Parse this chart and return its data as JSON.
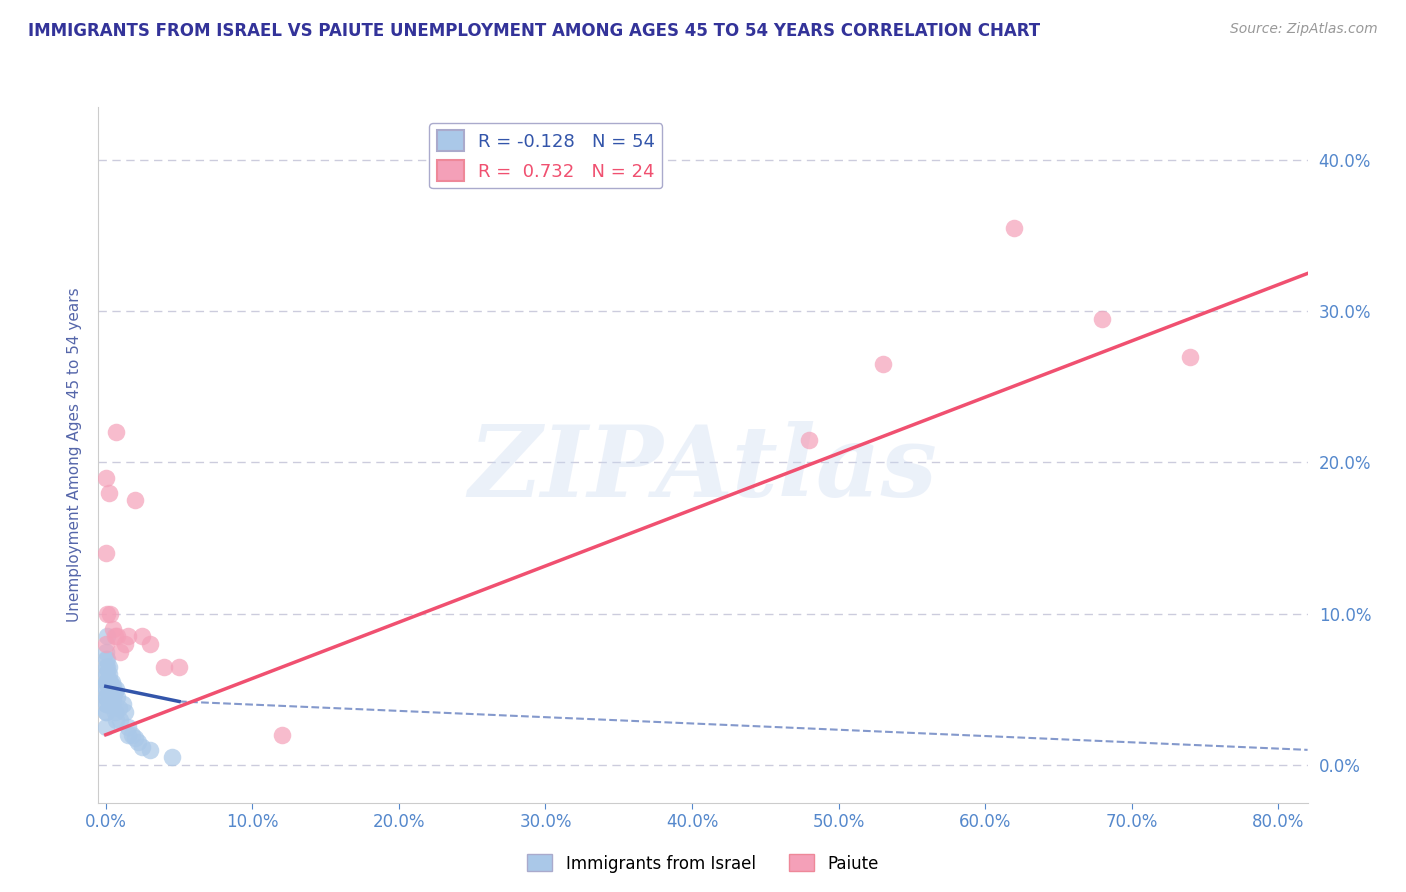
{
  "title": "IMMIGRANTS FROM ISRAEL VS PAIUTE UNEMPLOYMENT AMONG AGES 45 TO 54 YEARS CORRELATION CHART",
  "source": "Source: ZipAtlas.com",
  "ylabel": "Unemployment Among Ages 45 to 54 years",
  "watermark": "ZIPAtlas",
  "legend1_label": "Immigrants from Israel",
  "legend2_label": "Paiute",
  "R1": -0.128,
  "N1": 54,
  "R2": 0.732,
  "N2": 24,
  "xlim": [
    -0.005,
    0.82
  ],
  "ylim": [
    -0.025,
    0.435
  ],
  "xticks": [
    0.0,
    0.1,
    0.2,
    0.3,
    0.4,
    0.5,
    0.6,
    0.7,
    0.8
  ],
  "yticks": [
    0.0,
    0.1,
    0.2,
    0.3,
    0.4
  ],
  "color_israel": "#aac8e8",
  "color_paiute": "#f4a0b8",
  "trendline_israel_color": "#3355aa",
  "trendline_paiute_color": "#f05070",
  "background_color": "#ffffff",
  "grid_color": "#ccccdd",
  "title_color": "#333399",
  "axis_label_color": "#5566aa",
  "tick_label_color": "#5588cc",
  "scatter_israel": [
    [
      0.0,
      0.055
    ],
    [
      0.0,
      0.065
    ],
    [
      0.0,
      0.045
    ],
    [
      0.0,
      0.05
    ],
    [
      0.0,
      0.06
    ],
    [
      0.0,
      0.075
    ],
    [
      0.0,
      0.035
    ],
    [
      0.0,
      0.04
    ],
    [
      0.0,
      0.05
    ],
    [
      0.0,
      0.025
    ],
    [
      0.0,
      0.07
    ],
    [
      0.0,
      0.055
    ],
    [
      0.0,
      0.045
    ],
    [
      0.0,
      0.035
    ],
    [
      0.001,
      0.065
    ],
    [
      0.001,
      0.055
    ],
    [
      0.001,
      0.045
    ],
    [
      0.001,
      0.07
    ],
    [
      0.001,
      0.04
    ],
    [
      0.001,
      0.085
    ],
    [
      0.001,
      0.06
    ],
    [
      0.001,
      0.055
    ],
    [
      0.002,
      0.06
    ],
    [
      0.002,
      0.05
    ],
    [
      0.002,
      0.065
    ],
    [
      0.002,
      0.04
    ],
    [
      0.002,
      0.055
    ],
    [
      0.003,
      0.04
    ],
    [
      0.003,
      0.05
    ],
    [
      0.003,
      0.055
    ],
    [
      0.003,
      0.048
    ],
    [
      0.003,
      0.042
    ],
    [
      0.004,
      0.055
    ],
    [
      0.004,
      0.048
    ],
    [
      0.004,
      0.04
    ],
    [
      0.005,
      0.052
    ],
    [
      0.005,
      0.044
    ],
    [
      0.006,
      0.048
    ],
    [
      0.006,
      0.035
    ],
    [
      0.007,
      0.05
    ],
    [
      0.007,
      0.03
    ],
    [
      0.008,
      0.045
    ],
    [
      0.009,
      0.038
    ],
    [
      0.01,
      0.03
    ],
    [
      0.012,
      0.04
    ],
    [
      0.013,
      0.035
    ],
    [
      0.015,
      0.025
    ],
    [
      0.015,
      0.02
    ],
    [
      0.018,
      0.02
    ],
    [
      0.02,
      0.018
    ],
    [
      0.022,
      0.015
    ],
    [
      0.025,
      0.012
    ],
    [
      0.03,
      0.01
    ],
    [
      0.045,
      0.005
    ]
  ],
  "scatter_paiute": [
    [
      0.0,
      0.08
    ],
    [
      0.0,
      0.19
    ],
    [
      0.0,
      0.14
    ],
    [
      0.001,
      0.1
    ],
    [
      0.002,
      0.18
    ],
    [
      0.003,
      0.1
    ],
    [
      0.005,
      0.09
    ],
    [
      0.006,
      0.085
    ],
    [
      0.007,
      0.22
    ],
    [
      0.008,
      0.085
    ],
    [
      0.01,
      0.075
    ],
    [
      0.013,
      0.08
    ],
    [
      0.015,
      0.085
    ],
    [
      0.02,
      0.175
    ],
    [
      0.025,
      0.085
    ],
    [
      0.03,
      0.08
    ],
    [
      0.04,
      0.065
    ],
    [
      0.05,
      0.065
    ],
    [
      0.12,
      0.02
    ],
    [
      0.48,
      0.215
    ],
    [
      0.53,
      0.265
    ],
    [
      0.62,
      0.355
    ],
    [
      0.68,
      0.295
    ],
    [
      0.74,
      0.27
    ]
  ],
  "trendline_israel_solid": [
    [
      0.0,
      0.052
    ],
    [
      0.05,
      0.042
    ]
  ],
  "trendline_israel_dash": [
    [
      0.05,
      0.042
    ],
    [
      0.82,
      0.01
    ]
  ],
  "trendline_paiute": [
    [
      0.0,
      0.02
    ],
    [
      0.82,
      0.325
    ]
  ]
}
